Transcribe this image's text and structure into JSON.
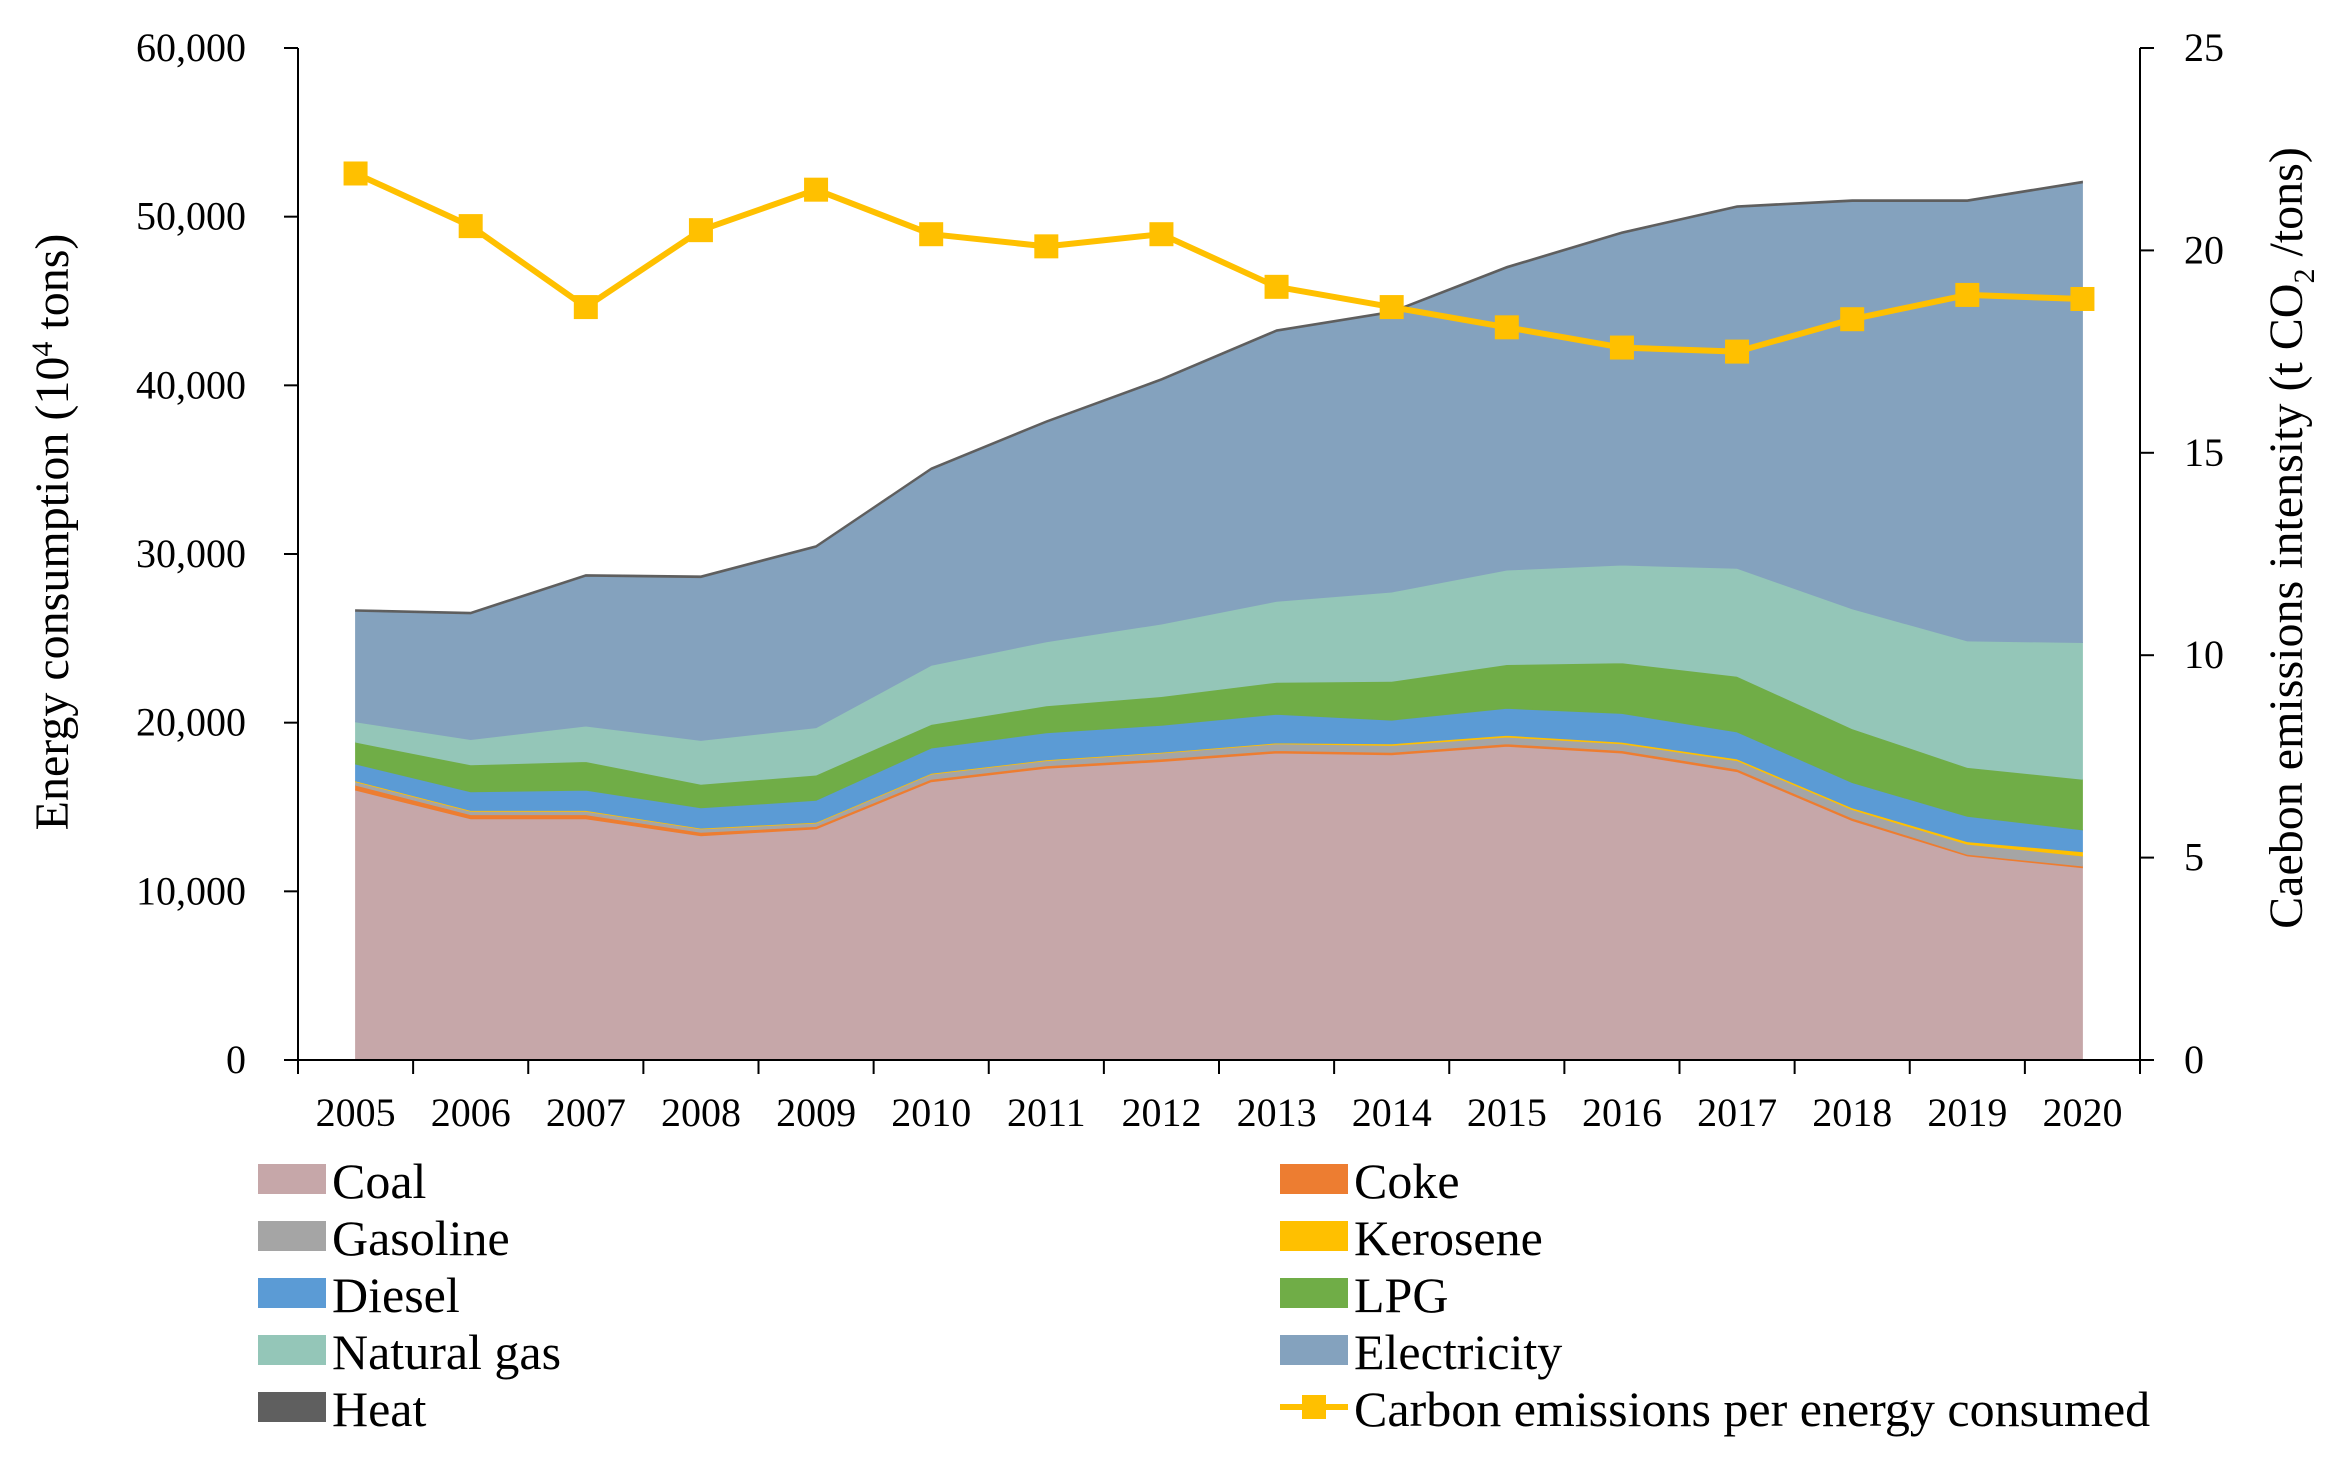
{
  "chart_data": {
    "type": "area",
    "title": "",
    "x": [
      "2005",
      "2006",
      "2007",
      "2008",
      "2009",
      "2010",
      "2011",
      "2012",
      "2013",
      "2014",
      "2015",
      "2016",
      "2017",
      "2018",
      "2019",
      "2020"
    ],
    "y_left": {
      "label": "Energy consumption (10",
      "label_sup": "4",
      "label_end": " tons)",
      "lim": [
        0,
        60000
      ],
      "ticks": [
        "0",
        "10,000",
        "20,000",
        "30,000",
        "40,000",
        "50,000",
        "60,000"
      ]
    },
    "y_right": {
      "label": "Caebon emissions intensity (t CO",
      "label_sub": "2",
      "label_end": " /tons)",
      "lim": [
        0,
        25
      ],
      "ticks": [
        "0",
        "5",
        "10",
        "15",
        "20",
        "25"
      ]
    },
    "series": [
      {
        "name": "Coal",
        "color": "#c6a7a9",
        "values": [
          16000,
          14300,
          14300,
          13300,
          13700,
          16500,
          17300,
          17700,
          18200,
          18100,
          18600,
          18200,
          17100,
          14200,
          12100,
          11400
        ]
      },
      {
        "name": "Coke",
        "color": "#ed7d31",
        "values": [
          300,
          250,
          250,
          200,
          150,
          150,
          150,
          150,
          150,
          150,
          150,
          150,
          150,
          150,
          100,
          100
        ]
      },
      {
        "name": "Gasoline",
        "color": "#a5a5a5",
        "values": [
          200,
          200,
          200,
          200,
          200,
          300,
          300,
          350,
          400,
          400,
          400,
          400,
          500,
          500,
          600,
          600
        ]
      },
      {
        "name": "Kerosene",
        "color": "#ffc000",
        "values": [
          50,
          50,
          50,
          50,
          50,
          50,
          50,
          50,
          50,
          100,
          100,
          100,
          100,
          100,
          150,
          250
        ]
      },
      {
        "name": "Diesel",
        "color": "#5b9bd5",
        "values": [
          1000,
          1100,
          1200,
          1200,
          1300,
          1500,
          1600,
          1600,
          1700,
          1400,
          1600,
          1700,
          1600,
          1500,
          1500,
          1300
        ]
      },
      {
        "name": "LPG",
        "color": "#70ad47",
        "values": [
          1300,
          1600,
          1700,
          1400,
          1500,
          1400,
          1600,
          1700,
          1900,
          2300,
          2600,
          3000,
          3300,
          3200,
          2900,
          3000
        ]
      },
      {
        "name": "Natural gas",
        "color": "#94c6b8",
        "values": [
          1200,
          1500,
          2100,
          2600,
          2800,
          3500,
          3800,
          4300,
          4800,
          5300,
          5600,
          5800,
          6400,
          7100,
          7500,
          8100
        ]
      },
      {
        "name": "Electricity",
        "color": "#84a2be",
        "values": [
          6550,
          7450,
          8880,
          9650,
          10700,
          11600,
          13000,
          14450,
          16000,
          16550,
          17900,
          19650,
          21400,
          24150,
          26050,
          27250
        ]
      },
      {
        "name": "Heat",
        "color": "#5f5f5f",
        "values": [
          100,
          100,
          100,
          100,
          100,
          100,
          100,
          100,
          100,
          100,
          100,
          100,
          100,
          100,
          100,
          100
        ]
      }
    ],
    "line_series": {
      "name": "Carbon emissions per energy consumed",
      "axis": "right",
      "color": "#ffc000",
      "values": [
        21.9,
        20.6,
        18.6,
        20.5,
        21.5,
        20.4,
        20.1,
        20.4,
        19.1,
        18.6,
        18.1,
        17.6,
        17.5,
        18.3,
        18.9,
        18.8
      ]
    },
    "legend": {
      "placement": "bottom",
      "entries": [
        "Coal",
        "Coke",
        "Gasoline",
        "Kerosene",
        "Diesel",
        "LPG",
        "Natural gas",
        "Electricity",
        "Heat",
        "Carbon emissions per energy consumed"
      ]
    }
  }
}
